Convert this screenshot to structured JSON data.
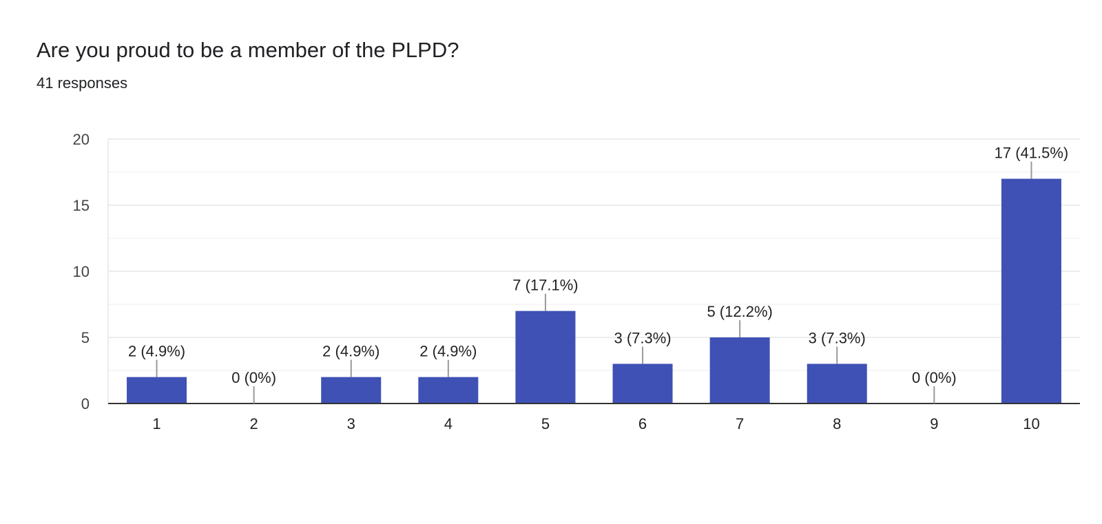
{
  "question": {
    "title": "Are you proud to be a member of the PLPD?",
    "responses": "41 responses"
  },
  "colors": {
    "bar": "#3f51b5",
    "grid": "#ececec",
    "axis": "#333333",
    "leader": "#999999"
  },
  "chart_data": {
    "type": "bar",
    "title": "Are you proud to be a member of the PLPD?",
    "xlabel": "",
    "ylabel": "",
    "categories": [
      "1",
      "2",
      "3",
      "4",
      "5",
      "6",
      "7",
      "8",
      "9",
      "10"
    ],
    "values": [
      2,
      0,
      2,
      2,
      7,
      3,
      5,
      3,
      0,
      17
    ],
    "data_labels": [
      "2 (4.9%)",
      "0 (0%)",
      "2 (4.9%)",
      "2 (4.9%)",
      "7 (17.1%)",
      "3 (7.3%)",
      "5 (12.2%)",
      "3 (7.3%)",
      "0 (0%)",
      "17 (41.5%)"
    ],
    "ylim": [
      0,
      20
    ],
    "yticks": [
      0,
      5,
      10,
      15,
      20
    ],
    "grid": true
  }
}
